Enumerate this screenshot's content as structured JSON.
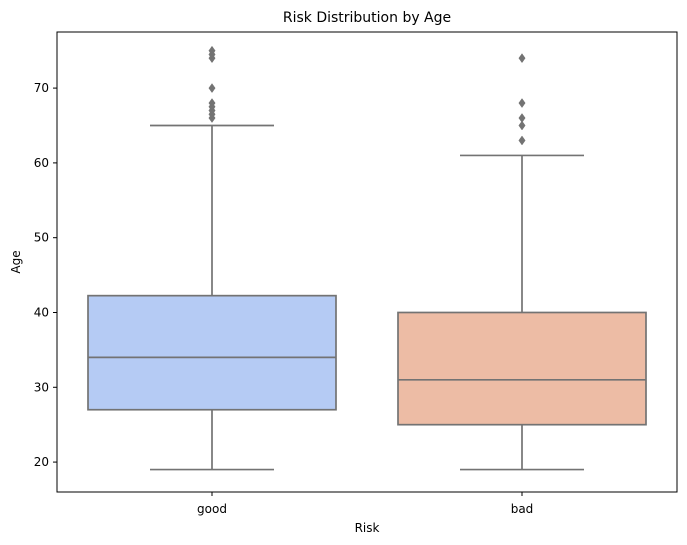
{
  "chart_data": {
    "type": "box",
    "title": "Risk Distribution by Age",
    "xlabel": "Risk",
    "ylabel": "Age",
    "ylim": [
      16,
      77.5
    ],
    "yticks": [
      20,
      30,
      40,
      50,
      60,
      70
    ],
    "grid": false,
    "categories": [
      "good",
      "bad"
    ],
    "boxes": [
      {
        "category": "good",
        "color": "#b5cbf4",
        "whisker_low": 19,
        "q1": 27,
        "median": 34,
        "q3": 42.25,
        "whisker_high": 65,
        "outliers": [
          66,
          66.5,
          67,
          67.5,
          68,
          70,
          74,
          74.5,
          75
        ]
      },
      {
        "category": "bad",
        "color": "#edbca5",
        "whisker_low": 19,
        "q1": 25,
        "median": 31,
        "q3": 40,
        "whisker_high": 61,
        "outliers": [
          63,
          65,
          66,
          68,
          74
        ]
      }
    ],
    "line_color": "#737373"
  }
}
